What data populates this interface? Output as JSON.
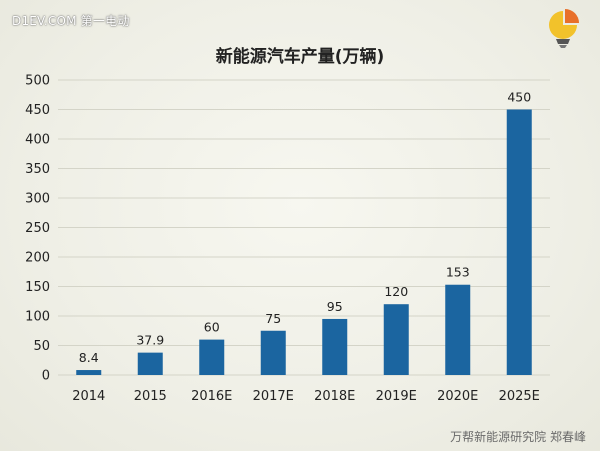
{
  "watermark": "D1EV.COM 第一电动",
  "footer": "万帮新能源研究院 郑春峰",
  "logo_icon": "pie-chart-lightbulb-icon",
  "colors": {
    "bar": "#1b65a0",
    "grid": "#d4d4c8",
    "text": "#222222"
  },
  "chart_data": {
    "type": "bar",
    "title": "新能源汽车产量(万辆)",
    "xlabel": "",
    "ylabel": "",
    "categories": [
      "2014",
      "2015",
      "2016E",
      "2017E",
      "2018E",
      "2019E",
      "2020E",
      "2025E"
    ],
    "values": [
      8.4,
      37.9,
      60,
      75,
      95,
      120,
      153,
      450
    ],
    "value_labels": [
      "8.4",
      "37.9",
      "60",
      "75",
      "95",
      "120",
      "153",
      "450"
    ],
    "ylim": [
      0,
      500
    ],
    "yticks": [
      "0",
      "50",
      "100",
      "150",
      "200",
      "250",
      "300",
      "350",
      "400",
      "450",
      "500"
    ],
    "grid": true,
    "legend": "none"
  }
}
